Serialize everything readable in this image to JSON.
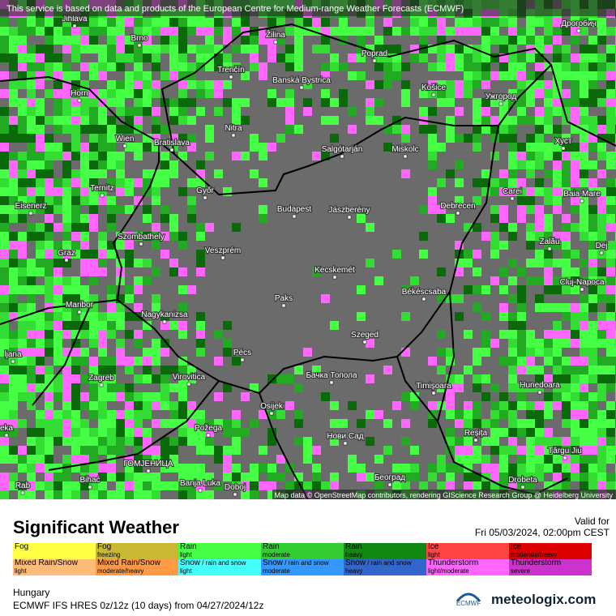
{
  "header": {
    "notice": "This service is based on data and products of the European Centre for Medium-range Weather Forecasts (ECMWF)"
  },
  "map": {
    "attribution": "Map data © OpenStreetMap contributors, rendering GIScience Research Group @ Heidelberg University",
    "cities": [
      "Jihlava",
      "Brno",
      "Žilina",
      "Poprad",
      "Дрогобич",
      "Trenčín",
      "Banská Bystrica",
      "Košice",
      "Ужгород",
      "Horn",
      "Nitra",
      "Wien",
      "Bratislava",
      "Salgótarján",
      "Miskolc",
      "Хуст",
      "Ternitz",
      "Győr",
      "Carei",
      "Baia Mare",
      "Eisenerz",
      "Budapest",
      "Jászberény",
      "Debrecen",
      "Szombathely",
      "Zalău",
      "Graz",
      "Veszprém",
      "Dej",
      "Kecskemét",
      "Cluj-Napoca",
      "Paks",
      "Békéscsaba",
      "Maribor",
      "Nagykanizsa",
      "Szeged",
      "Pécs",
      "ljana",
      "Zagreb",
      "Virovitica",
      "Бачка Топола",
      "Timișoara",
      "Hunedoara",
      "Osijek",
      "Požega",
      "Нови Сад",
      "Reșița",
      "Târgu Jiu",
      "Bihać",
      "ГОМЈЕНИЦА",
      "Banja Luka",
      "Doboj",
      "Београд",
      "Drobeta",
      "eka",
      "Rab"
    ]
  },
  "footer": {
    "title": "Significant Weather",
    "valid_label": "Valid for",
    "valid_time": "Fri 05/03/2024, 02:00pm CEST",
    "legend": [
      [
        {
          "name": "Fog",
          "color": "#ffff44"
        },
        {
          "name": "Fog",
          "sub": "freezing",
          "color": "#c8b832"
        },
        {
          "name": "Rain",
          "sub": "light",
          "color": "#44ff44"
        },
        {
          "name": "Rain",
          "sub": "moderate",
          "color": "#33cc33"
        },
        {
          "name": "Rain",
          "sub": "heavy",
          "color": "#118811"
        },
        {
          "name": "Ice",
          "sub": "light",
          "color": "#ff4444"
        },
        {
          "name": "Ice",
          "sub": "moderate/heavy",
          "color": "#dd0000"
        }
      ],
      [
        {
          "name": "Mixed Rain/Snow",
          "sub": "light",
          "color": "#ffbb77"
        },
        {
          "name": "Mixed Rain/Snow",
          "sub": "moderate/heavy",
          "color": "#ff9944"
        },
        {
          "name": "Snow",
          "extra": " / rain and snow",
          "sub": "light",
          "color": "#44ffff"
        },
        {
          "name": "Snow",
          "extra": " / rain and snow",
          "sub": "moderate",
          "color": "#3399ff"
        },
        {
          "name": "Snow",
          "extra": " / rain and snow",
          "sub": "heavy",
          "color": "#3366cc"
        },
        {
          "name": "Thunderstorm",
          "sub": "light/moderate",
          "color": "#ff66ff"
        },
        {
          "name": "Thunderstorm",
          "sub": "severe",
          "color": "#cc33cc"
        }
      ]
    ],
    "region": "Hungary",
    "model": "ECMWF IFS HRES 0z/12z (10 days) from  04/27/2024/12z",
    "ecmwf": "ECMWF",
    "brand": "meteologix.com"
  }
}
